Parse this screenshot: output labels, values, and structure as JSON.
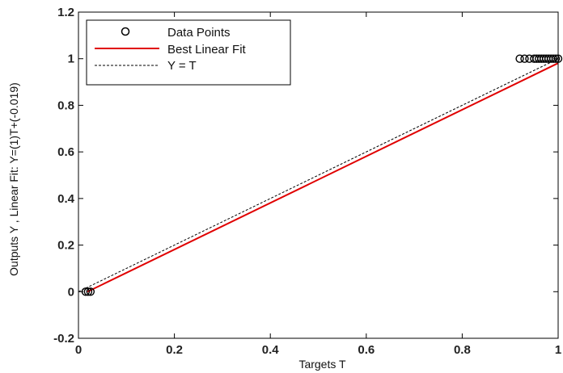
{
  "chart_data": {
    "type": "scatter",
    "xlabel": "Targets T",
    "ylabel": "Outputs Y ,  Linear Fit: Y=(1)T+(-0.019)",
    "xlim": [
      0,
      1
    ],
    "ylim": [
      -0.2,
      1.2
    ],
    "xticks": [
      "0",
      "0.2",
      "0.4",
      "0.6",
      "0.8",
      "1"
    ],
    "yticks": [
      "-0.2",
      "0",
      "0.2",
      "0.4",
      "0.6",
      "0.8",
      "1",
      "1.2"
    ],
    "grid": false,
    "legend_position": "top-left",
    "legend": [
      "Data Points",
      "Best Linear Fit",
      "Y = T"
    ],
    "series": [
      {
        "name": "Data Points",
        "type": "scatter",
        "marker": "circle-open",
        "color": "#000000",
        "points": [
          [
            0.015,
            0.0
          ],
          [
            0.02,
            0.0
          ],
          [
            0.025,
            0.0
          ],
          [
            0.92,
            1.0
          ],
          [
            0.93,
            1.0
          ],
          [
            0.94,
            1.0
          ],
          [
            0.95,
            1.0
          ],
          [
            0.955,
            1.0
          ],
          [
            0.96,
            1.0
          ],
          [
            0.965,
            1.0
          ],
          [
            0.97,
            1.0
          ],
          [
            0.975,
            1.0
          ],
          [
            0.98,
            1.0
          ],
          [
            0.985,
            1.0
          ],
          [
            0.99,
            1.0
          ],
          [
            0.995,
            1.0
          ],
          [
            1.0,
            1.0
          ]
        ]
      },
      {
        "name": "Best Linear Fit",
        "type": "line",
        "color": "#e00000",
        "slope": 1,
        "intercept": -0.019,
        "x": [
          0.019,
          1.0
        ]
      },
      {
        "name": "Y = T",
        "type": "line",
        "style": "dashed",
        "color": "#000000",
        "x": [
          0.0,
          1.0
        ]
      }
    ]
  }
}
